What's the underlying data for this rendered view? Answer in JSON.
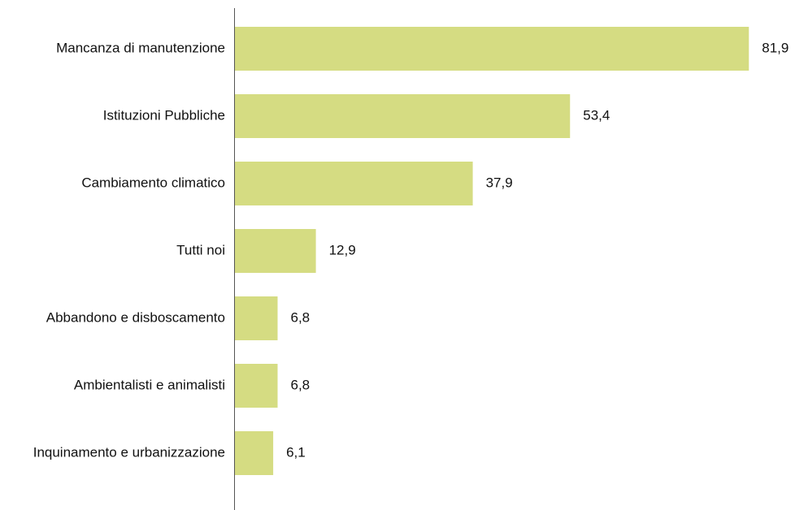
{
  "chart_data": {
    "type": "bar",
    "orientation": "horizontal",
    "categories": [
      "Mancanza di manutenzione",
      "Istituzioni Pubbliche",
      "Cambiamento climatico",
      "Tutti noi",
      "Abbandono e disboscamento",
      "Ambientalisti e animalisti",
      "Inquinamento e urbanizzazione"
    ],
    "values": [
      81.9,
      53.4,
      37.9,
      12.9,
      6.8,
      6.8,
      6.1
    ],
    "value_labels": [
      "81,9",
      "53,4",
      "37,9",
      "12,9",
      "6,8",
      "6,8",
      "6,1"
    ],
    "color": "#d5dc82"
  }
}
